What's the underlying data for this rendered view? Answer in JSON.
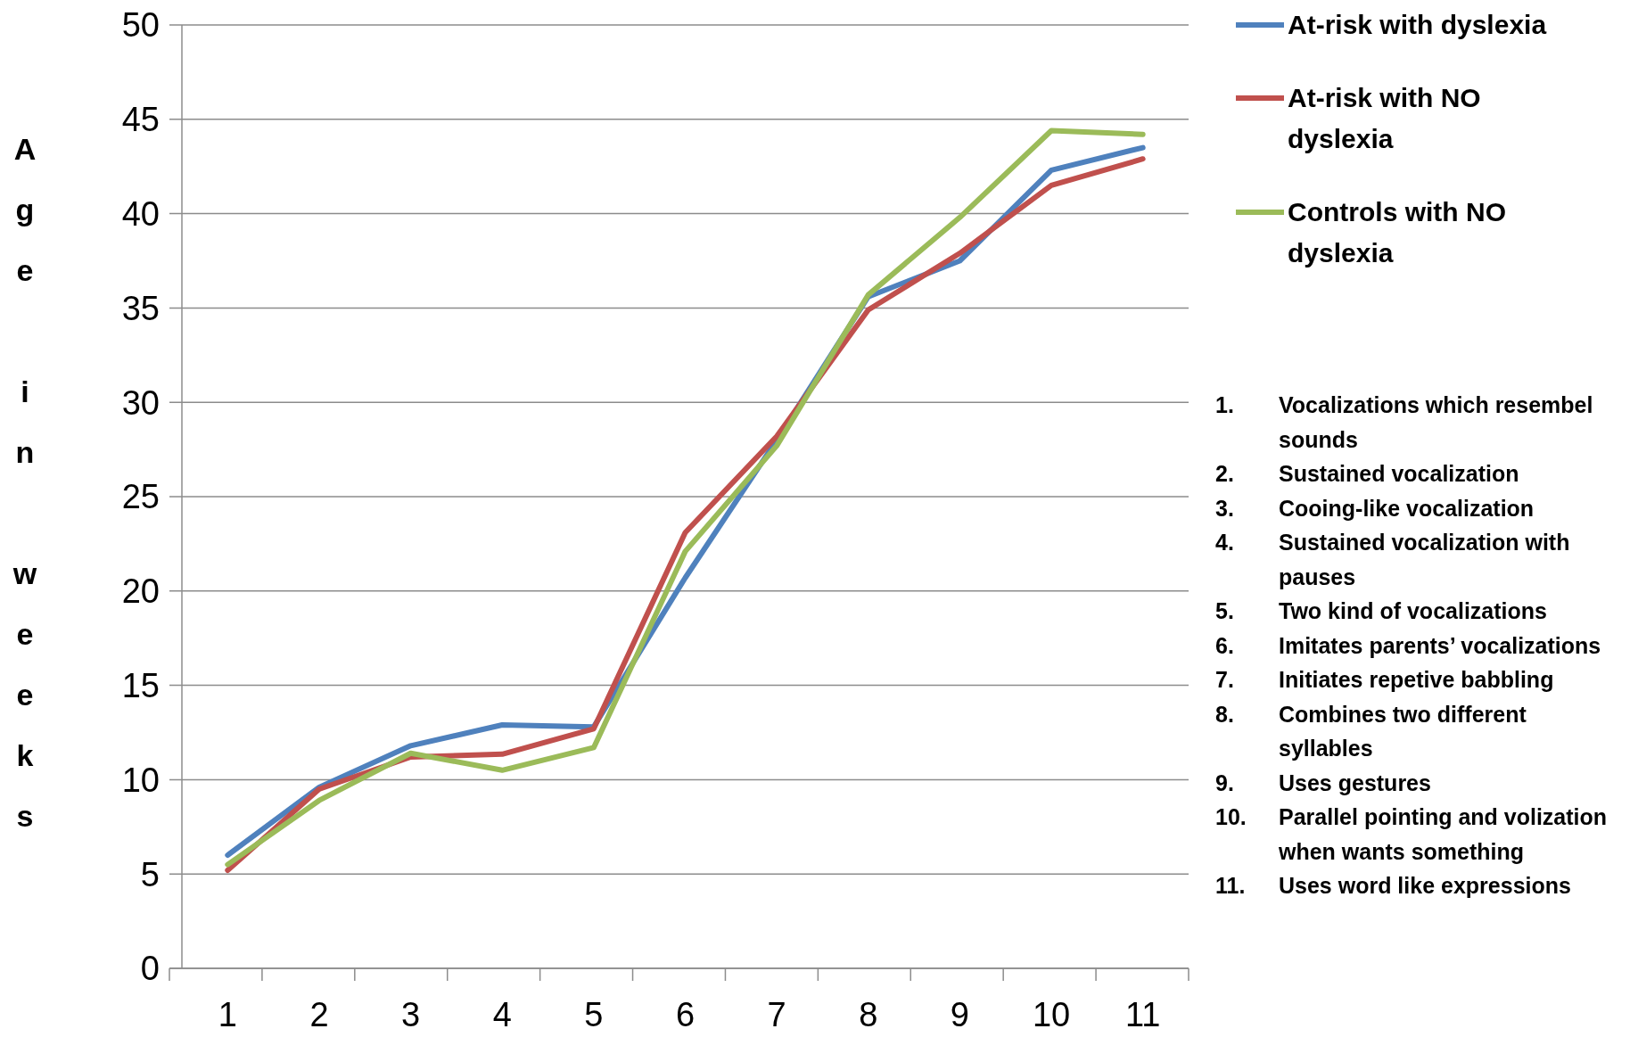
{
  "chart_data": {
    "type": "line",
    "ylabel": "Age in weeks",
    "categories": [
      "1",
      "2",
      "3",
      "4",
      "5",
      "6",
      "7",
      "8",
      "9",
      "10",
      "11"
    ],
    "series": [
      {
        "name": "At-risk with dyslexia",
        "color": "#4f81bd",
        "values": [
          6.0,
          9.6,
          11.8,
          12.9,
          12.8,
          20.7,
          28.0,
          35.6,
          37.5,
          42.3,
          43.5
        ]
      },
      {
        "name": "At-risk with NO dyslexia",
        "color": "#c0504d",
        "values": [
          5.2,
          9.5,
          11.2,
          11.35,
          12.7,
          23.1,
          28.2,
          34.9,
          37.9,
          41.5,
          42.9
        ]
      },
      {
        "name": "Controls with NO dyslexia",
        "color": "#9bbb59",
        "values": [
          5.5,
          8.9,
          11.4,
          10.5,
          11.7,
          22.1,
          27.7,
          35.7,
          39.8,
          44.4,
          44.2
        ]
      }
    ],
    "ylim": [
      0,
      50
    ],
    "yticks": [
      0,
      5,
      10,
      15,
      20,
      25,
      30,
      35,
      40,
      45,
      50
    ],
    "grid": "y",
    "legend": "top right",
    "line_style": "solid",
    "marker": "none",
    "annotations": [
      "1. Vocalizations which resembel sounds",
      "2. Sustained vocalization",
      "3. Cooing-like vocalization",
      "4. Sustained vocalization with pauses",
      "5. Two kind of vocalizations",
      "6. Imitates parents’ vocalizations",
      "7. Initiates repetive babbling",
      "8. Combines two different syllables",
      "9. Uses gestures",
      "10. Parallel pointing and volization when wants something",
      "11. Uses word like expressions"
    ]
  }
}
